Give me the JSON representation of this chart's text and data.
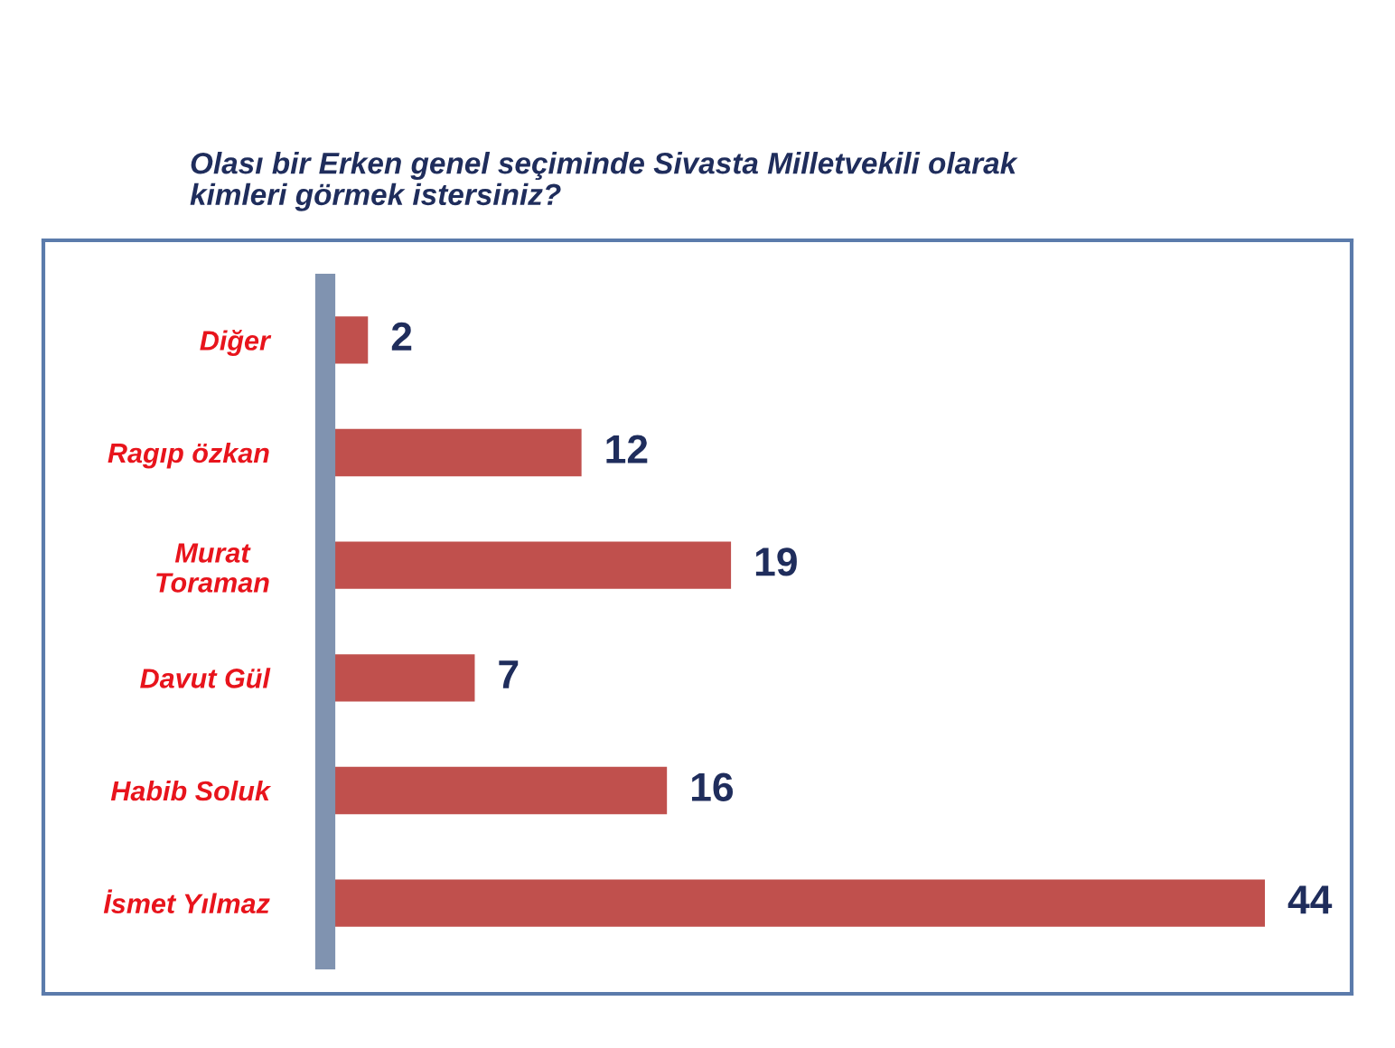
{
  "chart_data": {
    "type": "bar",
    "orientation": "horizontal",
    "title": "Olası bir Erken genel seçiminde Sivasta Milletvekili olarak kimleri görmek istersiniz?",
    "categories": [
      "Diğer",
      "Ragıp özkan",
      "Murat Toraman",
      "Davut Gül",
      "Habib Soluk",
      "İsmet Yılmaz"
    ],
    "values": [
      2,
      12,
      19,
      7,
      16,
      44
    ],
    "color": "#c0504d",
    "data_labels": true
  }
}
